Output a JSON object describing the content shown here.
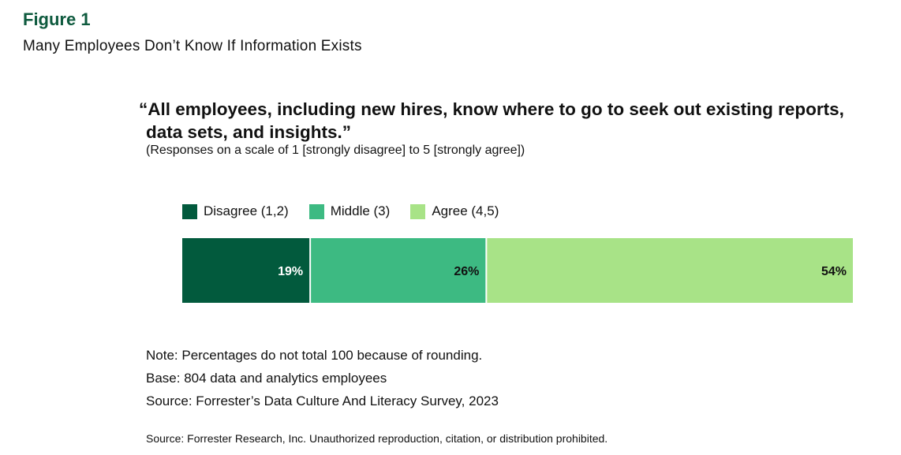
{
  "figure": {
    "label": "Figure 1",
    "subtitle": "Many Employees Don’t Know If Information Exists",
    "question": "“All employees, including new hires, know where to go to seek out existing reports, data sets, and insights.”",
    "scale_note": "(Responses on a scale of 1 [strongly disagree] to 5 [strongly agree])"
  },
  "chart_data": {
    "type": "bar",
    "orientation": "horizontal-stacked-100",
    "categories": [
      ""
    ],
    "series": [
      {
        "name": "Disagree (1,2)",
        "values": [
          19
        ],
        "label": "19%",
        "color": "#025a3d",
        "label_color": "#ffffff"
      },
      {
        "name": "Middle (3)",
        "values": [
          26
        ],
        "label": "26%",
        "color": "#3dba82",
        "label_color": "#111111"
      },
      {
        "name": "Agree (4,5)",
        "values": [
          54
        ],
        "label": "54%",
        "color": "#a8e387",
        "label_color": "#111111"
      }
    ],
    "legend_position": "top-left",
    "grid": false,
    "xlim": [
      0,
      99
    ]
  },
  "notes": [
    "Note: Percentages do not total 100 because of rounding.",
    "Base: 804 data and analytics employees",
    "Source: Forrester’s Data Culture And Literacy Survey, 2023"
  ],
  "footer": "Source: Forrester Research, Inc. Unauthorized reproduction, citation, or distribution prohibited."
}
